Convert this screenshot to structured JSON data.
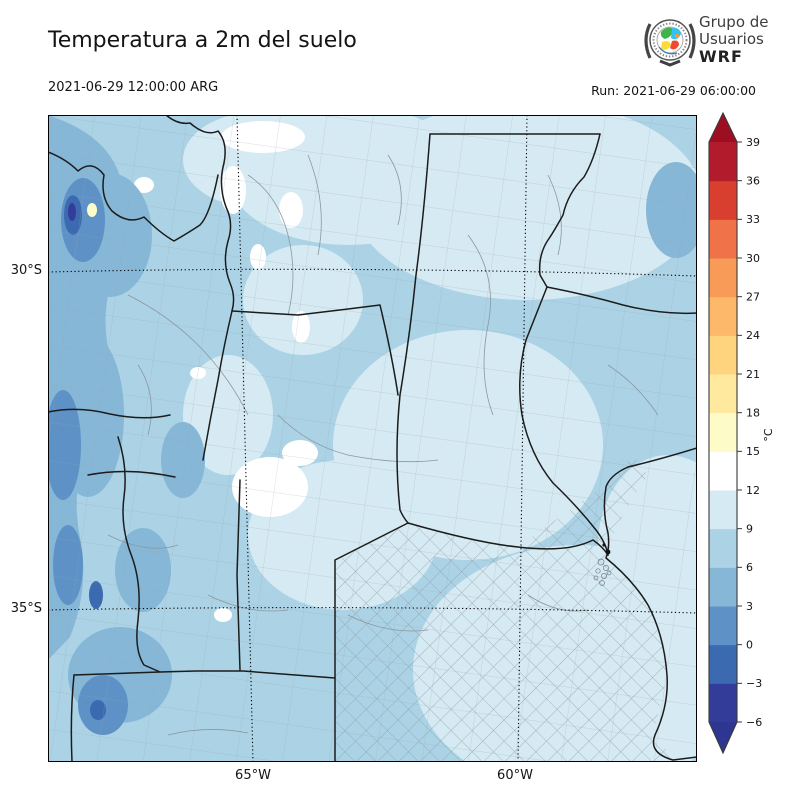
{
  "header": {
    "title": "Temperatura a 2m del suelo",
    "valid_time": "2021-06-29 12:00:00 ARG",
    "run_label": "Run: 2021-06-29 06:00:00"
  },
  "logo": {
    "line1": "Grupo de",
    "line2": "Usuarios",
    "line3": "WRF"
  },
  "map": {
    "lat_labels": [
      "30°S",
      "35°S"
    ],
    "lon_labels": [
      "65°W",
      "60°W"
    ]
  },
  "colorbar": {
    "unit": "°C",
    "tick_labels": [
      "39",
      "36",
      "33",
      "30",
      "27",
      "24",
      "21",
      "18",
      "15",
      "12",
      "9",
      "6",
      "3",
      "0",
      "−3",
      "−6"
    ],
    "levels": [
      -6,
      -3,
      0,
      3,
      6,
      9,
      12,
      15,
      18,
      21,
      24,
      27,
      30,
      33,
      36,
      39
    ],
    "colors": [
      "#333d99",
      "#3c6ab1",
      "#5e92c6",
      "#86b7d7",
      "#abd3e5",
      "#d6eaf3",
      "#ffffff",
      "#fdfcc9",
      "#fee99e",
      "#fed47f",
      "#fdb869",
      "#f99b58",
      "#f07249",
      "#d93f2f",
      "#b11b2c"
    ],
    "arrow_top": "#9d0e23",
    "arrow_bottom": "#2d3792"
  }
}
